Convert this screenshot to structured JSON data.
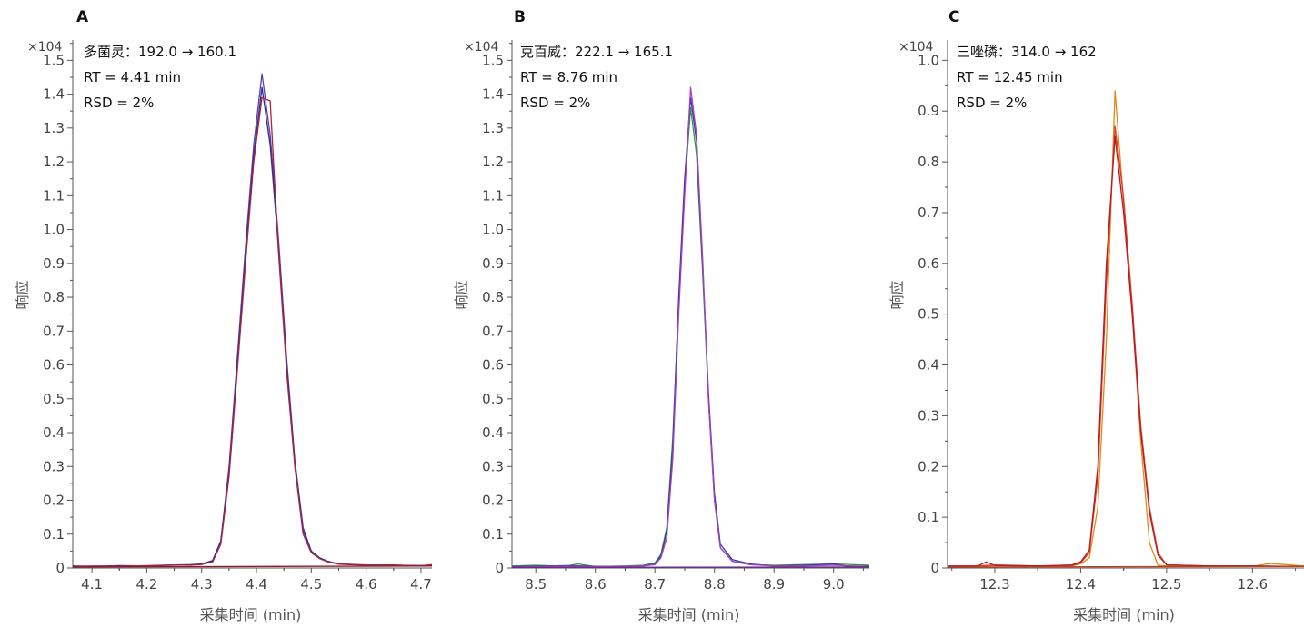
{
  "chart_data": [
    {
      "type": "line",
      "panel": "A",
      "multiplier": "×104",
      "annotations": [
        "多菌灵：192.0 → 160.1",
        "RT = 4.41 min",
        "RSD = 2%"
      ],
      "xlabel": "采集时间 (min)",
      "ylabel": "响应",
      "xlim": [
        4.065,
        4.72
      ],
      "ylim": [
        0,
        1.56
      ],
      "xticks": [
        4.1,
        4.2,
        4.3,
        4.4,
        4.5,
        4.6,
        4.7
      ],
      "yticks": [
        0,
        0.1,
        0.2,
        0.3,
        0.4,
        0.5,
        0.6,
        0.7,
        0.8,
        0.9,
        1.0,
        1.1,
        1.2,
        1.3,
        1.4,
        1.5
      ],
      "series": [
        {
          "color": "#5b3fb0",
          "x": [
            4.065,
            4.1,
            4.15,
            4.2,
            4.25,
            4.28,
            4.3,
            4.32,
            4.335,
            4.35,
            4.365,
            4.38,
            4.395,
            4.41,
            4.425,
            4.44,
            4.455,
            4.47,
            4.485,
            4.5,
            4.515,
            4.53,
            4.55,
            4.6,
            4.65,
            4.7,
            4.72
          ],
          "y": [
            0.005,
            0.004,
            0.006,
            0.006,
            0.008,
            0.009,
            0.01,
            0.02,
            0.08,
            0.3,
            0.62,
            0.95,
            1.25,
            1.46,
            1.28,
            0.98,
            0.62,
            0.32,
            0.12,
            0.05,
            0.03,
            0.02,
            0.012,
            0.008,
            0.008,
            0.007,
            0.009
          ]
        },
        {
          "color": "#2e2f8f",
          "x": [
            4.065,
            4.1,
            4.15,
            4.2,
            4.25,
            4.28,
            4.3,
            4.32,
            4.335,
            4.35,
            4.365,
            4.38,
            4.395,
            4.41,
            4.425,
            4.44,
            4.455,
            4.47,
            4.485,
            4.5,
            4.515,
            4.53,
            4.55,
            4.6,
            4.65,
            4.7,
            4.72
          ],
          "y": [
            0.006,
            0.005,
            0.007,
            0.006,
            0.009,
            0.01,
            0.012,
            0.022,
            0.08,
            0.28,
            0.6,
            0.92,
            1.22,
            1.42,
            1.25,
            0.95,
            0.6,
            0.31,
            0.11,
            0.05,
            0.03,
            0.02,
            0.012,
            0.009,
            0.008,
            0.007,
            0.008
          ]
        },
        {
          "color": "#b0243a",
          "x": [
            4.065,
            4.1,
            4.15,
            4.2,
            4.25,
            4.28,
            4.3,
            4.32,
            4.335,
            4.35,
            4.365,
            4.38,
            4.395,
            4.41,
            4.425,
            4.44,
            4.455,
            4.47,
            4.485,
            4.5,
            4.515,
            4.53,
            4.55,
            4.6,
            4.65,
            4.7,
            4.72
          ],
          "y": [
            0.004,
            0.006,
            0.005,
            0.007,
            0.009,
            0.008,
            0.011,
            0.018,
            0.07,
            0.27,
            0.58,
            0.9,
            1.2,
            1.39,
            1.38,
            0.94,
            0.58,
            0.3,
            0.1,
            0.045,
            0.028,
            0.018,
            0.011,
            0.008,
            0.009,
            0.006,
            0.01
          ]
        },
        {
          "color": "#8e1b2e",
          "x": [
            4.065,
            4.72
          ],
          "y": [
            0.003,
            0.006
          ]
        }
      ]
    },
    {
      "type": "line",
      "panel": "B",
      "multiplier": "×104",
      "annotations": [
        "克百威：222.1 → 165.1",
        "RT = 8.76 min",
        "RSD = 2%"
      ],
      "xlabel": "采集时间 (min)",
      "ylabel": "响应",
      "xlim": [
        8.46,
        9.06
      ],
      "ylim": [
        0,
        1.56
      ],
      "xticks": [
        8.5,
        8.6,
        8.7,
        8.8,
        8.9,
        9.0
      ],
      "yticks": [
        0,
        0.1,
        0.2,
        0.3,
        0.4,
        0.5,
        0.6,
        0.7,
        0.8,
        0.9,
        1.0,
        1.1,
        1.2,
        1.3,
        1.4,
        1.5
      ],
      "series": [
        {
          "color": "#2a9a3c",
          "x": [
            8.46,
            8.5,
            8.55,
            8.57,
            8.6,
            8.65,
            8.68,
            8.7,
            8.71,
            8.72,
            8.73,
            8.74,
            8.75,
            8.76,
            8.77,
            8.78,
            8.79,
            8.8,
            8.81,
            8.83,
            8.86,
            8.9,
            8.95,
            9.0,
            9.06
          ],
          "y": [
            0.006,
            0.008,
            0.005,
            0.012,
            0.004,
            0.006,
            0.008,
            0.015,
            0.04,
            0.12,
            0.38,
            0.78,
            1.12,
            1.36,
            1.22,
            0.88,
            0.5,
            0.2,
            0.06,
            0.02,
            0.01,
            0.008,
            0.01,
            0.012,
            0.008
          ]
        },
        {
          "color": "#3a37a8",
          "x": [
            8.46,
            8.5,
            8.55,
            8.6,
            8.65,
            8.68,
            8.7,
            8.71,
            8.72,
            8.73,
            8.74,
            8.75,
            8.76,
            8.77,
            8.78,
            8.79,
            8.8,
            8.81,
            8.83,
            8.86,
            8.9,
            8.95,
            9.0,
            9.02,
            9.06
          ],
          "y": [
            0.004,
            0.005,
            0.007,
            0.005,
            0.004,
            0.006,
            0.012,
            0.035,
            0.11,
            0.36,
            0.8,
            1.15,
            1.39,
            1.26,
            0.9,
            0.52,
            0.22,
            0.07,
            0.025,
            0.012,
            0.006,
            0.008,
            0.012,
            0.006,
            0.005
          ]
        },
        {
          "color": "#a83fc2",
          "x": [
            8.46,
            8.5,
            8.55,
            8.6,
            8.65,
            8.68,
            8.7,
            8.71,
            8.72,
            8.73,
            8.74,
            8.75,
            8.76,
            8.77,
            8.78,
            8.79,
            8.8,
            8.81,
            8.83,
            8.86,
            8.9,
            8.95,
            9.0,
            9.06
          ],
          "y": [
            0.003,
            0.004,
            0.005,
            0.004,
            0.005,
            0.006,
            0.01,
            0.03,
            0.09,
            0.32,
            0.75,
            1.1,
            1.42,
            1.28,
            0.92,
            0.5,
            0.2,
            0.06,
            0.02,
            0.01,
            0.006,
            0.006,
            0.008,
            0.004
          ]
        },
        {
          "color": "#6a2a8f",
          "x": [
            8.46,
            9.06
          ],
          "y": [
            0.002,
            0.003
          ]
        }
      ]
    },
    {
      "type": "line",
      "panel": "C",
      "multiplier": "×104",
      "annotations": [
        "三唑磷：314.0 → 162",
        "RT = 12.45 min",
        "RSD = 2%"
      ],
      "xlabel": "采集时间 (min)",
      "ylabel": "响应",
      "xlim": [
        12.245,
        12.66
      ],
      "ylim": [
        0,
        1.04
      ],
      "xticks": [
        12.3,
        12.4,
        12.5,
        12.6
      ],
      "yticks": [
        0,
        0.1,
        0.2,
        0.3,
        0.4,
        0.5,
        0.6,
        0.7,
        0.8,
        0.9,
        1.0
      ],
      "series": [
        {
          "color": "#e0891a",
          "x": [
            12.245,
            12.28,
            12.3,
            12.35,
            12.39,
            12.4,
            12.41,
            12.42,
            12.43,
            12.44,
            12.45,
            12.46,
            12.47,
            12.48,
            12.49,
            12.5,
            12.55,
            12.6,
            12.62,
            12.66
          ],
          "y": [
            0.004,
            0.003,
            0.005,
            0.004,
            0.004,
            0.008,
            0.02,
            0.12,
            0.45,
            0.94,
            0.72,
            0.5,
            0.25,
            0.05,
            0.005,
            0.004,
            0.004,
            0.003,
            0.009,
            0.004
          ]
        },
        {
          "color": "#e03a1a",
          "x": [
            12.245,
            12.28,
            12.3,
            12.35,
            12.39,
            12.4,
            12.41,
            12.42,
            12.43,
            12.44,
            12.45,
            12.46,
            12.47,
            12.48,
            12.49,
            12.5,
            12.55,
            12.6,
            12.66
          ],
          "y": [
            0.003,
            0.004,
            0.006,
            0.004,
            0.005,
            0.01,
            0.03,
            0.18,
            0.56,
            0.87,
            0.73,
            0.52,
            0.28,
            0.12,
            0.03,
            0.006,
            0.004,
            0.004,
            0.003
          ]
        },
        {
          "color": "#b51a2a",
          "x": [
            12.245,
            12.28,
            12.29,
            12.3,
            12.35,
            12.39,
            12.4,
            12.41,
            12.42,
            12.43,
            12.44,
            12.45,
            12.46,
            12.47,
            12.48,
            12.49,
            12.5,
            12.55,
            12.6,
            12.66
          ],
          "y": [
            0.004,
            0.004,
            0.012,
            0.005,
            0.004,
            0.006,
            0.012,
            0.035,
            0.2,
            0.6,
            0.85,
            0.7,
            0.5,
            0.27,
            0.11,
            0.025,
            0.006,
            0.004,
            0.004,
            0.003
          ]
        },
        {
          "color": "#c43c1c",
          "x": [
            12.245,
            12.66
          ],
          "y": [
            0.002,
            0.003
          ]
        }
      ]
    }
  ]
}
